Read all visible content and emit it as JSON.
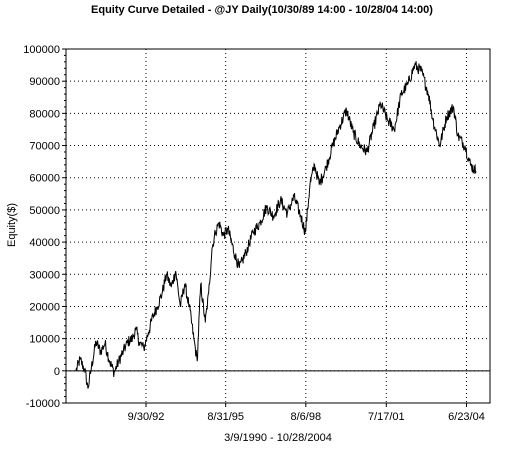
{
  "chart_data": {
    "type": "line",
    "title": "Equity Curve Detailed - @JY Daily(10/30/89 14:00 - 10/28/04 14:00)",
    "xlabel": "3/9/1990 - 10/28/2004",
    "ylabel": "Equity($)",
    "x_range": [
      "1990-03-09",
      "2004-10-28"
    ],
    "ylim": [
      -10000,
      100000
    ],
    "y_ticks": [
      -10000,
      0,
      10000,
      20000,
      30000,
      40000,
      50000,
      60000,
      70000,
      80000,
      90000,
      100000
    ],
    "y_tick_labels": [
      "-10000",
      "0",
      "10000",
      "20000",
      "30000",
      "40000",
      "50000",
      "60000",
      "70000",
      "80000",
      "90000",
      "100000"
    ],
    "x_ticks": [
      "1992-09-30",
      "1995-08-31",
      "1998-08-06",
      "2001-07-17",
      "2004-06-23"
    ],
    "x_tick_labels": [
      "9/30/92",
      "8/31/95",
      "8/6/98",
      "7/17/01",
      "6/23/04"
    ],
    "grid": true,
    "zero_line": true,
    "series": [
      {
        "color": "#000000",
        "points": [
          [
            "1990-03-09",
            0
          ],
          [
            "1990-05-01",
            3500
          ],
          [
            "1990-07-01",
            500
          ],
          [
            "1990-08-15",
            -5500
          ],
          [
            "1990-10-01",
            1000
          ],
          [
            "1990-12-01",
            9000
          ],
          [
            "1991-02-01",
            6000
          ],
          [
            "1991-04-01",
            8500
          ],
          [
            "1991-06-01",
            3000
          ],
          [
            "1991-08-01",
            -500
          ],
          [
            "1991-10-01",
            3000
          ],
          [
            "1991-12-01",
            6000
          ],
          [
            "1992-02-01",
            9000
          ],
          [
            "1992-04-01",
            10000
          ],
          [
            "1992-05-15",
            13000
          ],
          [
            "1992-07-01",
            9000
          ],
          [
            "1992-09-01",
            7000
          ],
          [
            "1992-11-01",
            12000
          ],
          [
            "1993-01-01",
            17000
          ],
          [
            "1993-03-01",
            20000
          ],
          [
            "1993-05-01",
            24000
          ],
          [
            "1993-07-01",
            30000
          ],
          [
            "1993-09-01",
            26000
          ],
          [
            "1993-11-01",
            31000
          ],
          [
            "1994-01-01",
            20000
          ],
          [
            "1994-03-01",
            27000
          ],
          [
            "1994-05-01",
            20000
          ],
          [
            "1994-07-01",
            10000
          ],
          [
            "1994-08-15",
            3000
          ],
          [
            "1994-10-01",
            27000
          ],
          [
            "1994-12-01",
            15000
          ],
          [
            "1995-01-15",
            24000
          ],
          [
            "1995-03-01",
            38000
          ],
          [
            "1995-04-15",
            43000
          ],
          [
            "1995-06-01",
            46000
          ],
          [
            "1995-08-01",
            42000
          ],
          [
            "1995-10-01",
            44000
          ],
          [
            "1996-01-01",
            36000
          ],
          [
            "1996-03-01",
            32000
          ],
          [
            "1996-06-01",
            37000
          ],
          [
            "1996-09-01",
            43000
          ],
          [
            "1996-12-01",
            46000
          ],
          [
            "1997-03-01",
            51000
          ],
          [
            "1997-06-01",
            48000
          ],
          [
            "1997-09-01",
            53000
          ],
          [
            "1997-12-01",
            49000
          ],
          [
            "1998-03-01",
            54000
          ],
          [
            "1998-06-01",
            48000
          ],
          [
            "1998-08-01",
            43000
          ],
          [
            "1998-10-01",
            58000
          ],
          [
            "1998-12-01",
            64000
          ],
          [
            "1999-02-01",
            58000
          ],
          [
            "1999-05-01",
            63000
          ],
          [
            "1999-08-01",
            70000
          ],
          [
            "1999-11-01",
            76000
          ],
          [
            "2000-02-01",
            81000
          ],
          [
            "2000-05-01",
            74000
          ],
          [
            "2000-08-01",
            70000
          ],
          [
            "2000-11-01",
            68000
          ],
          [
            "2001-02-01",
            76000
          ],
          [
            "2001-05-01",
            83000
          ],
          [
            "2001-08-01",
            78000
          ],
          [
            "2001-11-01",
            75000
          ],
          [
            "2002-02-01",
            86000
          ],
          [
            "2002-05-01",
            89000
          ],
          [
            "2002-08-01",
            95000
          ],
          [
            "2002-11-01",
            93000
          ],
          [
            "2003-02-01",
            86000
          ],
          [
            "2003-04-01",
            78000
          ],
          [
            "2003-07-01",
            70000
          ],
          [
            "2003-10-01",
            79000
          ],
          [
            "2004-01-01",
            82000
          ],
          [
            "2004-03-01",
            73000
          ],
          [
            "2004-06-01",
            70000
          ],
          [
            "2004-08-15",
            64000
          ],
          [
            "2004-10-28",
            62000
          ]
        ]
      }
    ]
  }
}
